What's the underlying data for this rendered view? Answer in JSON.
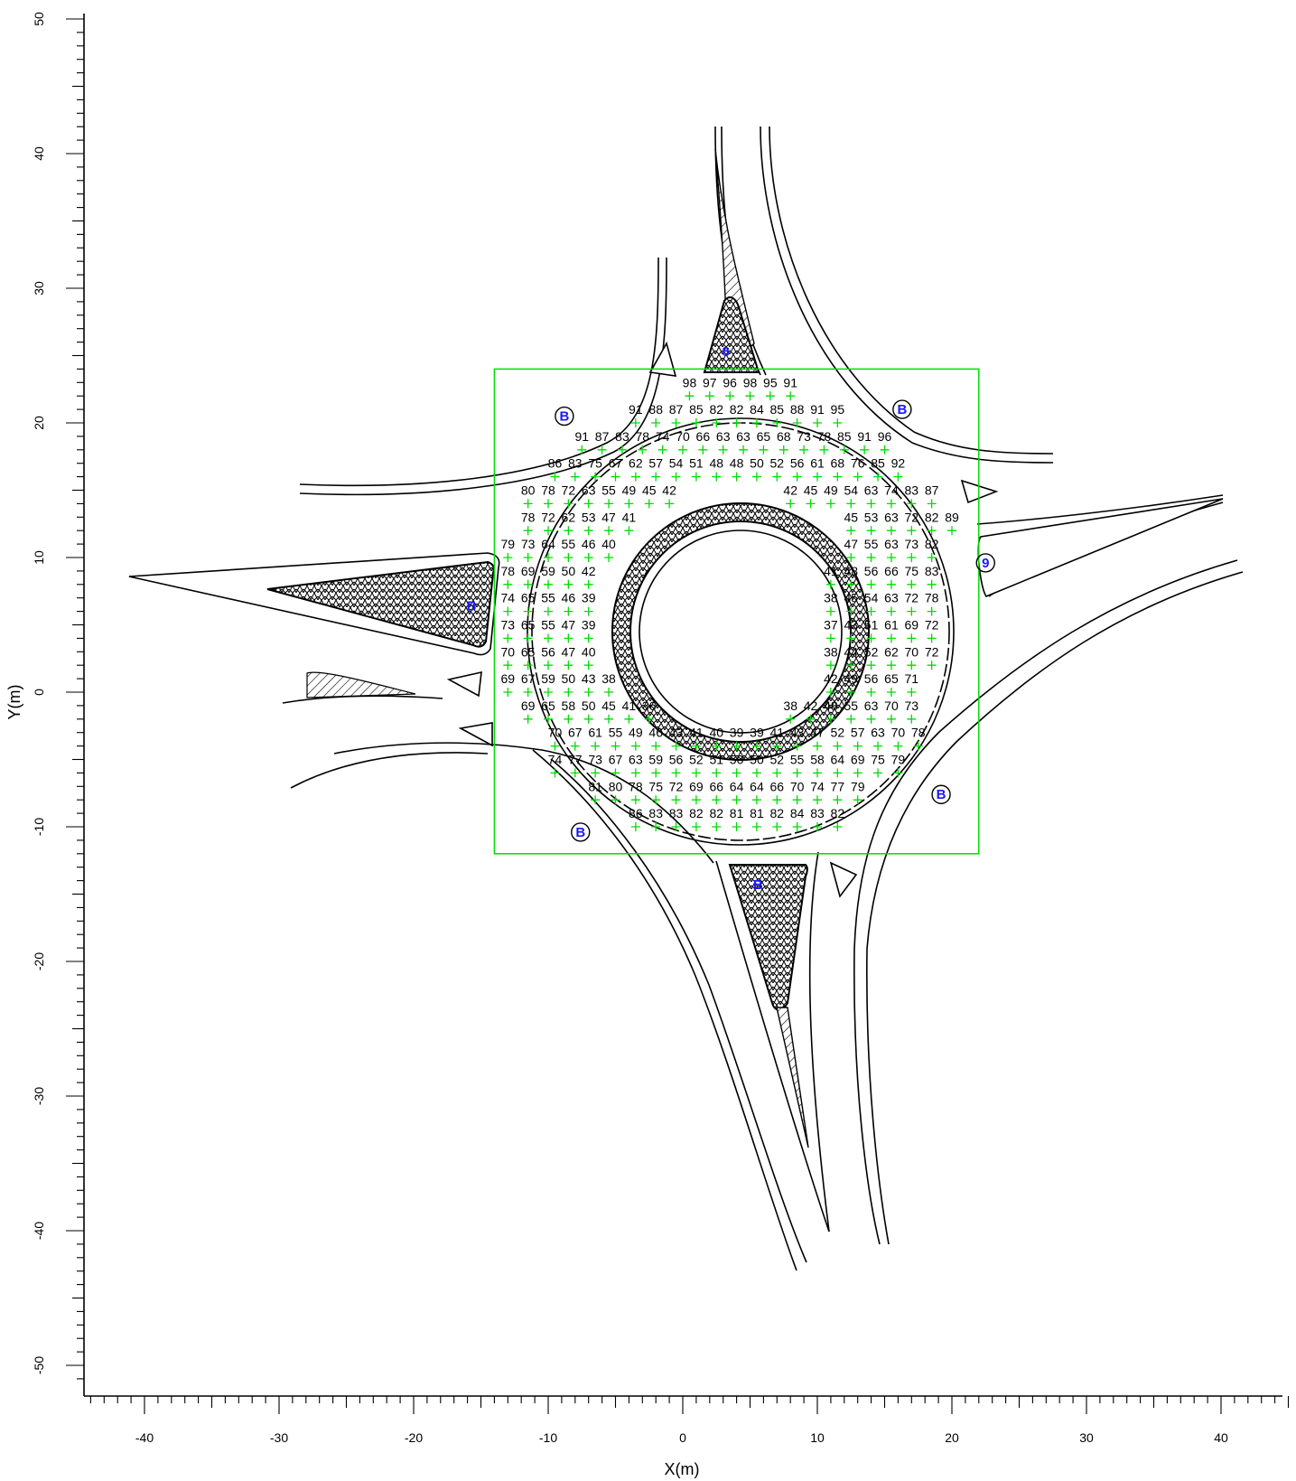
{
  "x_axis": {
    "label": "X(m)",
    "ticks": [
      -40,
      -30,
      -20,
      -10,
      0,
      10,
      20,
      30,
      40
    ],
    "range": [
      -44,
      45
    ]
  },
  "y_axis": {
    "label": "Y(m)",
    "ticks": [
      50,
      40,
      30,
      20,
      10,
      0,
      -10,
      -20,
      -30,
      -40,
      -50
    ],
    "range": [
      -51.5,
      50
    ]
  },
  "colors": {
    "grid_box": "#00dd00",
    "grid_marker": "#00dd00",
    "receptor": "#1a1aff",
    "lines": "#000000"
  },
  "calc_area": {
    "x_range": [
      -14,
      22
    ],
    "y_range": [
      -12,
      24
    ]
  },
  "grid_rows": [
    {
      "y": 23.0,
      "x0": 0.5,
      "values": [
        "98",
        "97",
        "96",
        "98",
        "95",
        "91"
      ]
    },
    {
      "y": 21.0,
      "x0": -3.5,
      "values": [
        "91",
        "88",
        "87",
        "85",
        "82",
        "82",
        "84",
        "85",
        "88",
        "91",
        "95"
      ]
    },
    {
      "y": 19.0,
      "x0": -7.5,
      "values": [
        "91",
        "87",
        "83",
        "78",
        "74",
        "70",
        "66",
        "63",
        "63",
        "65",
        "68",
        "73",
        "78",
        "85",
        "91",
        "96"
      ]
    },
    {
      "y": 17.0,
      "x0": -9.5,
      "values": [
        "86",
        "83",
        "75",
        "67",
        "62",
        "57",
        "54",
        "51",
        "48",
        "48",
        "50",
        "52",
        "56",
        "61",
        "68",
        "76",
        "85",
        "92"
      ]
    },
    {
      "y": 15.0,
      "x0": -11.5,
      "values": [
        "80",
        "78",
        "72",
        "63",
        "55",
        "49",
        "45",
        "42",
        "",
        "",
        "",
        "",
        "",
        "42",
        "45",
        "49",
        "54",
        "63",
        "74",
        "83",
        "87"
      ]
    },
    {
      "y": 13.0,
      "x0": -11.5,
      "values": [
        "78",
        "72",
        "62",
        "53",
        "47",
        "41",
        "",
        "",
        "",
        "",
        "",
        "",
        "",
        "",
        "",
        "",
        "45",
        "53",
        "63",
        "72",
        "82",
        "89"
      ]
    },
    {
      "y": 11.0,
      "x0": -13.0,
      "values": [
        "79",
        "73",
        "64",
        "55",
        "46",
        "40",
        "",
        "",
        "",
        "",
        "",
        "",
        "",
        "",
        "",
        "",
        "",
        "47",
        "55",
        "63",
        "73",
        "82"
      ]
    },
    {
      "y": 9.0,
      "x0": -13.0,
      "values": [
        "78",
        "69",
        "59",
        "50",
        "42",
        "",
        "",
        "",
        "",
        "",
        "",
        "",
        "",
        "",
        "",
        "",
        "41",
        "48",
        "56",
        "66",
        "75",
        "83"
      ]
    },
    {
      "y": 7.0,
      "x0": -13.0,
      "values": [
        "74",
        "65",
        "55",
        "46",
        "39",
        "",
        "",
        "",
        "",
        "",
        "",
        "",
        "",
        "",
        "",
        "",
        "38",
        "45",
        "54",
        "63",
        "72",
        "78"
      ]
    },
    {
      "y": 5.0,
      "x0": -13.0,
      "values": [
        "73",
        "65",
        "55",
        "47",
        "39",
        "",
        "",
        "",
        "",
        "",
        "",
        "",
        "",
        "",
        "",
        "",
        "37",
        "43",
        "51",
        "61",
        "69",
        "72"
      ]
    },
    {
      "y": 3.0,
      "x0": -13.0,
      "values": [
        "70",
        "65",
        "56",
        "47",
        "40",
        "",
        "",
        "",
        "",
        "",
        "",
        "",
        "",
        "",
        "",
        "",
        "38",
        "44",
        "52",
        "62",
        "70",
        "72"
      ]
    },
    {
      "y": 1.0,
      "x0": -13.0,
      "values": [
        "69",
        "67",
        "59",
        "50",
        "43",
        "38",
        "",
        "",
        "",
        "",
        "",
        "",
        "",
        "",
        "",
        "",
        "42",
        "49",
        "56",
        "65",
        "71"
      ]
    },
    {
      "y": -1.0,
      "x0": -11.5,
      "values": [
        "69",
        "65",
        "58",
        "50",
        "45",
        "41",
        "36",
        "",
        "",
        "",
        "",
        "",
        "",
        "38",
        "42",
        "48",
        "55",
        "63",
        "70",
        "73"
      ]
    },
    {
      "y": -3.0,
      "x0": -9.5,
      "values": [
        "70",
        "67",
        "61",
        "55",
        "49",
        "46",
        "43",
        "41",
        "40",
        "39",
        "39",
        "41",
        "43",
        "47",
        "52",
        "57",
        "63",
        "70",
        "78"
      ]
    },
    {
      "y": -5.0,
      "x0": -9.5,
      "values": [
        "74",
        "77",
        "73",
        "67",
        "63",
        "59",
        "56",
        "52",
        "51",
        "50",
        "50",
        "52",
        "55",
        "58",
        "64",
        "69",
        "75",
        "79"
      ]
    },
    {
      "y": -7.0,
      "x0": -6.5,
      "values": [
        "81",
        "80",
        "78",
        "75",
        "72",
        "69",
        "66",
        "64",
        "64",
        "66",
        "70",
        "74",
        "77",
        "79"
      ]
    },
    {
      "y": -9.0,
      "x0": -3.5,
      "values": [
        "86",
        "83",
        "83",
        "82",
        "82",
        "81",
        "81",
        "82",
        "84",
        "83",
        "82"
      ]
    }
  ],
  "receptors": [
    {
      "x": 3.2,
      "y": 25.3,
      "label": "8",
      "circled": false
    },
    {
      "x": -8.8,
      "y": 20.5,
      "label": "B",
      "circled": true
    },
    {
      "x": 16.3,
      "y": 21.0,
      "label": "B",
      "circled": true
    },
    {
      "x": 22.5,
      "y": 9.6,
      "label": "9",
      "circled": true
    },
    {
      "x": -15.7,
      "y": 6.4,
      "label": "B",
      "circled": false
    },
    {
      "x": 19.2,
      "y": -7.6,
      "label": "B",
      "circled": true
    },
    {
      "x": -7.6,
      "y": -10.4,
      "label": "B",
      "circled": true
    },
    {
      "x": 5.6,
      "y": -14.3,
      "label": "B",
      "circled": false
    }
  ]
}
